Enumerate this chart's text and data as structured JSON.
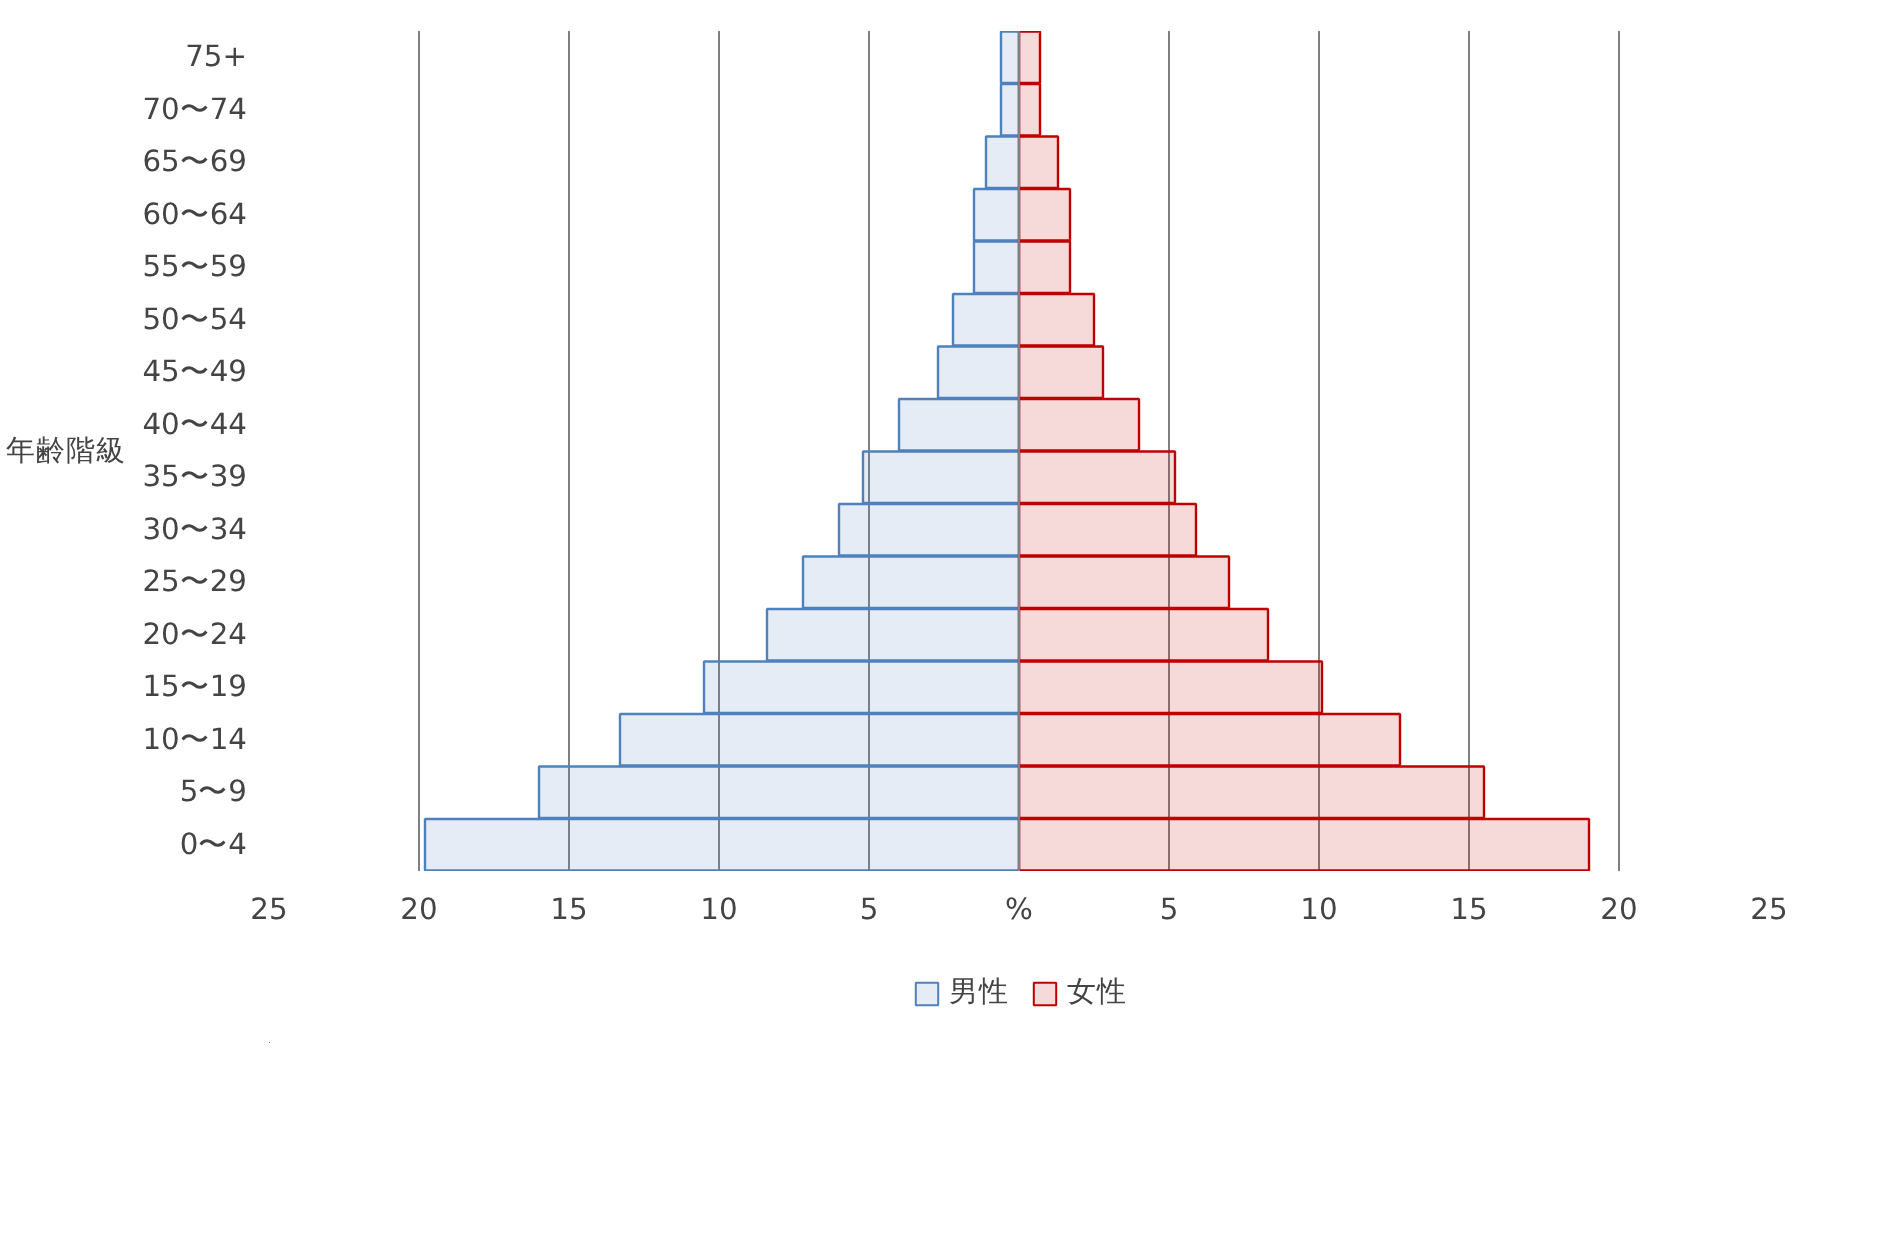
{
  "chart_data": {
    "type": "bar",
    "orientation": "horizontal",
    "ylabel": "年齢階級",
    "categories": [
      "75+",
      "70〜74",
      "65〜69",
      "60〜64",
      "55〜59",
      "50〜54",
      "45〜49",
      "40〜44",
      "35〜39",
      "30〜34",
      "25〜29",
      "20〜24",
      "15〜19",
      "10〜14",
      "5〜9",
      "0〜4"
    ],
    "series": [
      {
        "name": "男性",
        "color": "#4f81bd",
        "values": [
          -0.6,
          -0.6,
          -1.1,
          -1.5,
          -1.5,
          -2.2,
          -2.7,
          -4.0,
          -5.2,
          -6.0,
          -7.2,
          -8.4,
          -10.5,
          -13.3,
          -16.0,
          -19.8
        ]
      },
      {
        "name": "女性",
        "color": "#c00000",
        "values": [
          0.7,
          0.7,
          1.3,
          1.7,
          1.7,
          2.5,
          2.8,
          4.0,
          5.2,
          5.9,
          7.0,
          8.3,
          10.1,
          12.7,
          15.5,
          19.0
        ]
      }
    ],
    "xlim": [
      -25,
      25
    ],
    "xticks": [
      {
        "value": -25,
        "label": "25"
      },
      {
        "value": -20,
        "label": "20"
      },
      {
        "value": -15,
        "label": "15"
      },
      {
        "value": -10,
        "label": "10"
      },
      {
        "value": -5,
        "label": "5"
      },
      {
        "value": 0,
        "label": "%"
      },
      5,
      10,
      15,
      20,
      25
    ],
    "grid": "x",
    "legend": "bottom"
  }
}
